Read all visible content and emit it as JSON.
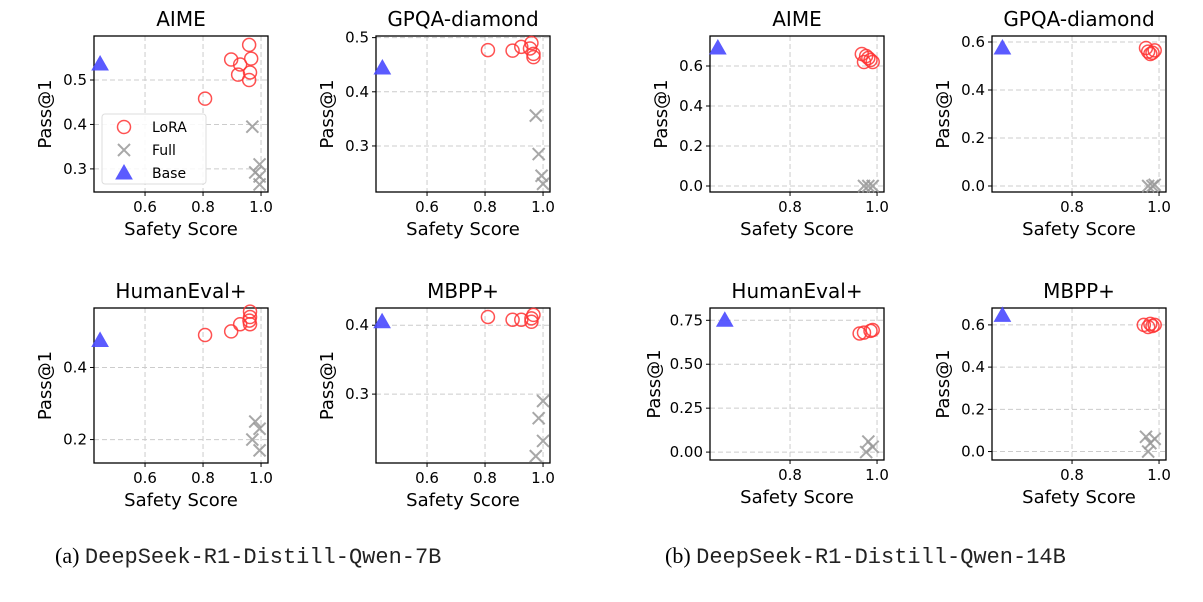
{
  "legend": {
    "placement": "center-left (AIME, left figure)",
    "entries": [
      "LoRA",
      "Full",
      "Base"
    ]
  },
  "colors": {
    "LoRA": "#ff3333",
    "Full": "#999999",
    "Base": "#4a4aff",
    "grid": "#cccccc"
  },
  "captions": [
    {
      "label": "(a)",
      "name": "DeepSeek-R1-Distill-Qwen-7B"
    },
    {
      "label": "(b)",
      "name": "DeepSeek-R1-Distill-Qwen-14B"
    }
  ],
  "chart_data": [
    {
      "type": "scatter",
      "figure": "(a)",
      "title": "AIME",
      "xlabel": "Safety Score",
      "ylabel": "Pass@1",
      "grid": true,
      "legend": true,
      "xlim": [
        0.424,
        1.024
      ],
      "ylim": [
        0.248,
        0.599
      ],
      "xticks": [
        "0.6",
        "0.8",
        "1.0"
      ],
      "yticks": [
        "0.3",
        "0.4",
        "0.5"
      ],
      "series": [
        {
          "name": "LoRA",
          "marker": "circle",
          "x": [
            0.959,
            0.897,
            0.966,
            0.928,
            0.962,
            0.921,
            0.959,
            0.807
          ],
          "y": [
            0.579,
            0.546,
            0.548,
            0.535,
            0.517,
            0.512,
            0.5,
            0.458
          ]
        },
        {
          "name": "Full",
          "marker": "x",
          "x": [
            0.97,
            0.995,
            0.98,
            0.995,
            0.995
          ],
          "y": [
            0.395,
            0.31,
            0.292,
            0.283,
            0.265
          ]
        },
        {
          "name": "Base",
          "marker": "triangle",
          "x": [
            0.445
          ],
          "y": [
            0.536
          ]
        }
      ]
    },
    {
      "type": "scatter",
      "figure": "(a)",
      "title": "GPQA-diamond",
      "xlabel": "Safety Score",
      "ylabel": "Pass@1",
      "grid": true,
      "xlim": [
        0.424,
        1.024
      ],
      "ylim": [
        0.215,
        0.503
      ],
      "xticks": [
        "0.6",
        "0.8",
        "1.0"
      ],
      "yticks": [
        "0.3",
        "0.4",
        "0.5"
      ],
      "series": [
        {
          "name": "LoRA",
          "marker": "circle",
          "x": [
            0.81,
            0.895,
            0.925,
            0.96,
            0.967,
            0.967,
            0.955
          ],
          "y": [
            0.477,
            0.476,
            0.483,
            0.49,
            0.47,
            0.464,
            0.48
          ]
        },
        {
          "name": "Full",
          "marker": "x",
          "x": [
            0.975,
            0.985,
            0.995,
            1.0
          ],
          "y": [
            0.356,
            0.285,
            0.245,
            0.23
          ]
        },
        {
          "name": "Base",
          "marker": "triangle",
          "x": [
            0.446
          ],
          "y": [
            0.444
          ]
        }
      ]
    },
    {
      "type": "scatter",
      "figure": "(a)",
      "title": "HumanEval+",
      "xlabel": "Safety Score",
      "ylabel": "Pass@1",
      "grid": true,
      "xlim": [
        0.424,
        1.024
      ],
      "ylim": [
        0.135,
        0.565
      ],
      "xticks": [
        "0.6",
        "0.8",
        "1.0"
      ],
      "yticks": [
        "0.2",
        "0.4"
      ],
      "series": [
        {
          "name": "LoRA",
          "marker": "circle",
          "x": [
            0.807,
            0.897,
            0.928,
            0.962,
            0.962,
            0.962,
            0.96
          ],
          "y": [
            0.49,
            0.5,
            0.52,
            0.52,
            0.54,
            0.555,
            0.53
          ]
        },
        {
          "name": "Full",
          "marker": "x",
          "x": [
            0.98,
            0.995,
            0.97,
            0.995
          ],
          "y": [
            0.25,
            0.23,
            0.2,
            0.17
          ]
        },
        {
          "name": "Base",
          "marker": "triangle",
          "x": [
            0.445
          ],
          "y": [
            0.475
          ]
        }
      ]
    },
    {
      "type": "scatter",
      "figure": "(a)",
      "title": "MBPP+",
      "xlabel": "Safety Score",
      "ylabel": "Pass@1",
      "grid": true,
      "xlim": [
        0.424,
        1.024
      ],
      "ylim": [
        0.2,
        0.425
      ],
      "xticks": [
        "0.6",
        "0.8",
        "1.0"
      ],
      "yticks": [
        "0.3",
        "0.4"
      ],
      "series": [
        {
          "name": "LoRA",
          "marker": "circle",
          "x": [
            0.81,
            0.895,
            0.925,
            0.96,
            0.967,
            0.96
          ],
          "y": [
            0.412,
            0.408,
            0.408,
            0.41,
            0.415,
            0.405
          ]
        },
        {
          "name": "Full",
          "marker": "x",
          "x": [
            1.0,
            0.985,
            1.0,
            0.975
          ],
          "y": [
            0.29,
            0.265,
            0.232,
            0.21
          ]
        },
        {
          "name": "Base",
          "marker": "triangle",
          "x": [
            0.445
          ],
          "y": [
            0.405
          ]
        }
      ]
    },
    {
      "type": "scatter",
      "figure": "(b)",
      "title": "AIME",
      "xlabel": "Safety Score",
      "ylabel": "Pass@1",
      "grid": true,
      "xlim": [
        0.616,
        1.016
      ],
      "ylim": [
        -0.03,
        0.75
      ],
      "xticks": [
        "0.8",
        "1.0"
      ],
      "yticks": [
        "0.0",
        "0.2",
        "0.4",
        "0.6"
      ],
      "series": [
        {
          "name": "LoRA",
          "marker": "circle",
          "x": [
            0.965,
            0.975,
            0.985,
            0.97,
            0.99,
            0.98
          ],
          "y": [
            0.66,
            0.65,
            0.63,
            0.62,
            0.62,
            0.64
          ]
        },
        {
          "name": "Full",
          "marker": "x",
          "x": [
            0.97,
            0.98,
            0.99
          ],
          "y": [
            0.0,
            0.0,
            0.0
          ]
        },
        {
          "name": "Base",
          "marker": "triangle",
          "x": [
            0.634
          ],
          "y": [
            0.69
          ]
        }
      ]
    },
    {
      "type": "scatter",
      "figure": "(b)",
      "title": "GPQA-diamond",
      "xlabel": "Safety Score",
      "ylabel": "Pass@1",
      "grid": true,
      "xlim": [
        0.616,
        1.016
      ],
      "ylim": [
        -0.025,
        0.625
      ],
      "xticks": [
        "0.8",
        "1.0"
      ],
      "yticks": [
        "0.0",
        "0.2",
        "0.4",
        "0.6"
      ],
      "series": [
        {
          "name": "LoRA",
          "marker": "circle",
          "x": [
            0.97,
            0.975,
            0.985,
            0.99,
            0.98
          ],
          "y": [
            0.575,
            0.56,
            0.555,
            0.565,
            0.55
          ]
        },
        {
          "name": "Full",
          "marker": "x",
          "x": [
            0.975,
            0.985,
            0.99
          ],
          "y": [
            0.0,
            0.0,
            0.005
          ]
        },
        {
          "name": "Base",
          "marker": "triangle",
          "x": [
            0.64
          ],
          "y": [
            0.575
          ]
        }
      ]
    },
    {
      "type": "scatter",
      "figure": "(b)",
      "title": "HumanEval+",
      "xlabel": "Safety Score",
      "ylabel": "Pass@1",
      "grid": true,
      "xlim": [
        0.616,
        1.016
      ],
      "ylim": [
        -0.045,
        0.82
      ],
      "xticks": [
        "0.8",
        "1.0"
      ],
      "yticks": [
        "0.00",
        "0.25",
        "0.50",
        "0.75"
      ],
      "series": [
        {
          "name": "LoRA",
          "marker": "circle",
          "x": [
            0.96,
            0.97,
            0.985,
            0.99
          ],
          "y": [
            0.675,
            0.68,
            0.69,
            0.695
          ]
        },
        {
          "name": "Full",
          "marker": "x",
          "x": [
            0.98,
            0.99,
            0.975
          ],
          "y": [
            0.06,
            0.03,
            0.0
          ]
        },
        {
          "name": "Base",
          "marker": "triangle",
          "x": [
            0.65
          ],
          "y": [
            0.75
          ]
        }
      ]
    },
    {
      "type": "scatter",
      "figure": "(b)",
      "title": "MBPP+",
      "xlabel": "Safety Score",
      "ylabel": "Pass@1",
      "grid": true,
      "xlim": [
        0.616,
        1.016
      ],
      "ylim": [
        -0.04,
        0.68
      ],
      "xticks": [
        "0.8",
        "1.0"
      ],
      "yticks": [
        "0.0",
        "0.2",
        "0.4",
        "0.6"
      ],
      "series": [
        {
          "name": "LoRA",
          "marker": "circle",
          "x": [
            0.965,
            0.975,
            0.985,
            0.99,
            0.98
          ],
          "y": [
            0.6,
            0.59,
            0.595,
            0.6,
            0.605
          ]
        },
        {
          "name": "Full",
          "marker": "x",
          "x": [
            0.97,
            0.98,
            0.99,
            0.975
          ],
          "y": [
            0.07,
            0.04,
            0.06,
            0.0
          ]
        },
        {
          "name": "Base",
          "marker": "triangle",
          "x": [
            0.64
          ],
          "y": [
            0.645
          ]
        }
      ]
    }
  ]
}
